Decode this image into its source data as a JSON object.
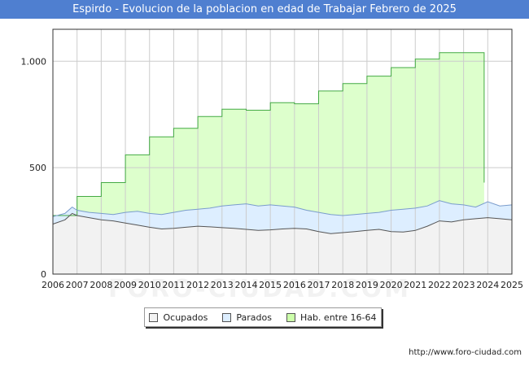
{
  "page": {
    "title": "Espirdo - Evolucion de la poblacion en edad de Trabajar Febrero de 2025",
    "source": "http://www.foro-ciudad.com",
    "watermark": "FORO-CIUDAD.COM"
  },
  "colors": {
    "title_bg": "#4f7fd0",
    "ocupados_fill": "#f2f2f2",
    "ocupados_line": "#555555",
    "parados_fill": "#ddeeff",
    "parados_line": "#7a9ccc",
    "hab_fill": "#ddffcc",
    "hab_line": "#44aa44",
    "grid": "#cccccc"
  },
  "legend": [
    {
      "label": "Ocupados",
      "color": "#f2f2f2"
    },
    {
      "label": "Parados",
      "color": "#ddeeff"
    },
    {
      "label": "Hab. entre 16-64",
      "color": "#ccffaa"
    }
  ],
  "chart_data": {
    "type": "area",
    "title": "Espirdo - Evolucion de la poblacion en edad de Trabajar Febrero de 2025",
    "xlabel": "",
    "ylabel": "",
    "xlim": [
      2006,
      2025
    ],
    "ylim": [
      0,
      1150
    ],
    "x_ticks": [
      "2006",
      "2007",
      "2008",
      "2009",
      "2010",
      "2011",
      "2012",
      "2013",
      "2014",
      "2015",
      "2016",
      "2017",
      "2018",
      "2019",
      "2020",
      "2021",
      "2022",
      "2023",
      "2024",
      "2025"
    ],
    "y_ticks": [
      {
        "value": 0,
        "label": "0"
      },
      {
        "value": 500,
        "label": "500"
      },
      {
        "value": 1000,
        "label": "1.000"
      }
    ],
    "grid": true,
    "legend_position": "bottom",
    "series": [
      {
        "name": "Hab. entre 16-64",
        "step": true,
        "points": [
          [
            2006,
            275
          ],
          [
            2007,
            365
          ],
          [
            2008,
            430
          ],
          [
            2009,
            560
          ],
          [
            2010,
            645
          ],
          [
            2011,
            685
          ],
          [
            2012,
            740
          ],
          [
            2013,
            775
          ],
          [
            2014,
            770
          ],
          [
            2015,
            805
          ],
          [
            2016,
            800
          ],
          [
            2017,
            860
          ],
          [
            2018,
            895
          ],
          [
            2019,
            930
          ],
          [
            2020,
            970
          ],
          [
            2021,
            1010
          ],
          [
            2022,
            1040
          ],
          [
            2023.85,
            1040
          ],
          [
            2023.85,
            430
          ]
        ]
      },
      {
        "name": "Ocupados + Parados",
        "points": [
          [
            2006,
            270
          ],
          [
            2006.5,
            285
          ],
          [
            2006.8,
            315
          ],
          [
            2007,
            300
          ],
          [
            2007.5,
            290
          ],
          [
            2008,
            285
          ],
          [
            2008.5,
            280
          ],
          [
            2009,
            290
          ],
          [
            2009.5,
            295
          ],
          [
            2010,
            285
          ],
          [
            2010.5,
            280
          ],
          [
            2011,
            290
          ],
          [
            2011.5,
            300
          ],
          [
            2012,
            305
          ],
          [
            2012.5,
            310
          ],
          [
            2013,
            320
          ],
          [
            2013.5,
            325
          ],
          [
            2014,
            330
          ],
          [
            2014.5,
            320
          ],
          [
            2015,
            325
          ],
          [
            2015.5,
            320
          ],
          [
            2016,
            315
          ],
          [
            2016.5,
            300
          ],
          [
            2017,
            290
          ],
          [
            2017.5,
            280
          ],
          [
            2018,
            275
          ],
          [
            2018.5,
            280
          ],
          [
            2019,
            285
          ],
          [
            2019.5,
            290
          ],
          [
            2020,
            300
          ],
          [
            2020.5,
            305
          ],
          [
            2021,
            310
          ],
          [
            2021.5,
            320
          ],
          [
            2022,
            345
          ],
          [
            2022.5,
            330
          ],
          [
            2023,
            325
          ],
          [
            2023.5,
            315
          ],
          [
            2024,
            340
          ],
          [
            2024.5,
            320
          ],
          [
            2025,
            325
          ]
        ]
      },
      {
        "name": "Ocupados",
        "points": [
          [
            2006,
            235
          ],
          [
            2006.5,
            255
          ],
          [
            2006.8,
            285
          ],
          [
            2007,
            275
          ],
          [
            2007.5,
            265
          ],
          [
            2008,
            255
          ],
          [
            2008.5,
            250
          ],
          [
            2009,
            240
          ],
          [
            2009.5,
            230
          ],
          [
            2010,
            220
          ],
          [
            2010.5,
            212
          ],
          [
            2011,
            215
          ],
          [
            2011.5,
            220
          ],
          [
            2012,
            225
          ],
          [
            2012.5,
            222
          ],
          [
            2013,
            218
          ],
          [
            2013.5,
            215
          ],
          [
            2014,
            210
          ],
          [
            2014.5,
            205
          ],
          [
            2015,
            208
          ],
          [
            2015.5,
            212
          ],
          [
            2016,
            215
          ],
          [
            2016.5,
            212
          ],
          [
            2017,
            200
          ],
          [
            2017.5,
            190
          ],
          [
            2018,
            195
          ],
          [
            2018.5,
            200
          ],
          [
            2019,
            205
          ],
          [
            2019.5,
            210
          ],
          [
            2020,
            200
          ],
          [
            2020.5,
            198
          ],
          [
            2021,
            205
          ],
          [
            2021.5,
            225
          ],
          [
            2022,
            250
          ],
          [
            2022.5,
            245
          ],
          [
            2023,
            255
          ],
          [
            2023.5,
            260
          ],
          [
            2024,
            265
          ],
          [
            2024.5,
            260
          ],
          [
            2025,
            255
          ]
        ]
      }
    ]
  }
}
